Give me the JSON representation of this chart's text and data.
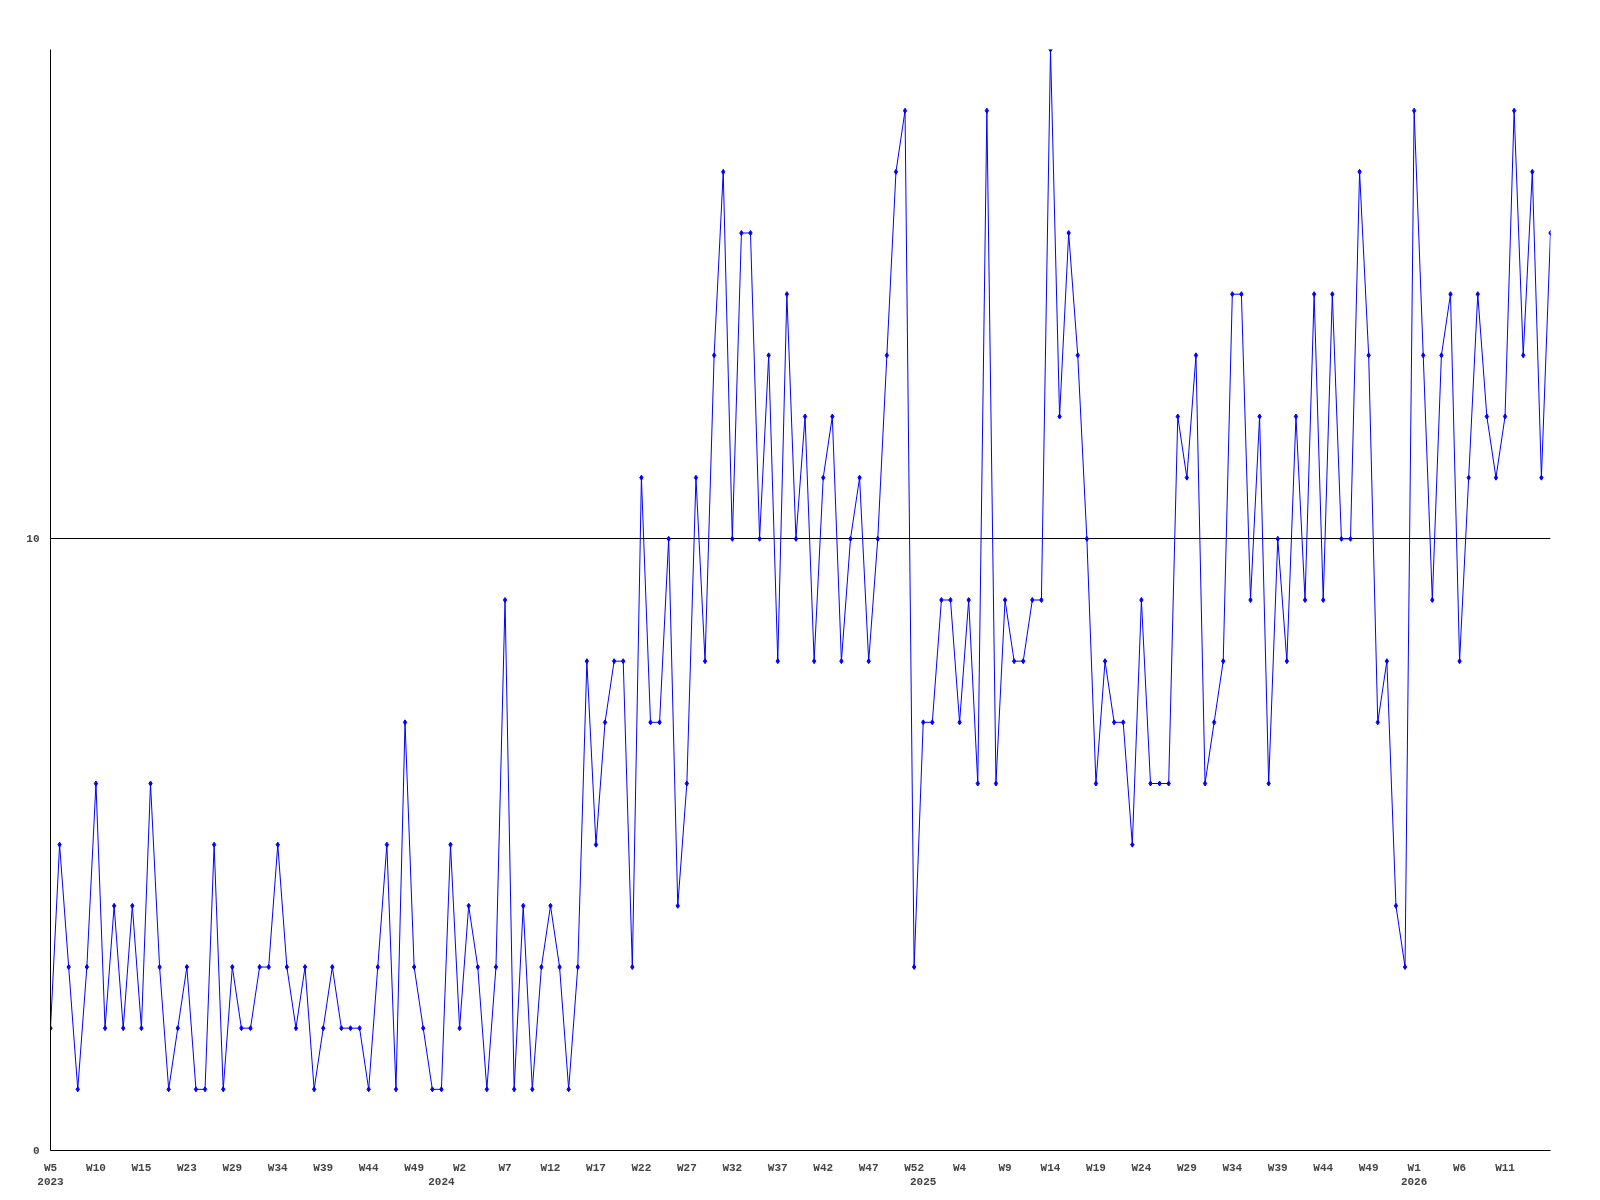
{
  "chart_data": {
    "type": "line",
    "categories": [
      "W5\n2023",
      null,
      null,
      null,
      null,
      "W10",
      null,
      null,
      null,
      null,
      "W15",
      null,
      null,
      null,
      null,
      "W23",
      null,
      null,
      null,
      null,
      "W29",
      null,
      null,
      null,
      null,
      "W34",
      null,
      null,
      null,
      null,
      "W39",
      null,
      null,
      null,
      null,
      "W44",
      null,
      null,
      null,
      null,
      "W49",
      null,
      null,
      "\n2024",
      null,
      "W2",
      null,
      null,
      null,
      null,
      "W7",
      null,
      null,
      null,
      null,
      "W12",
      null,
      null,
      null,
      null,
      "W17",
      null,
      null,
      null,
      null,
      "W22",
      null,
      null,
      null,
      null,
      "W27",
      null,
      null,
      null,
      null,
      "W32",
      null,
      null,
      null,
      null,
      "W37",
      null,
      null,
      null,
      null,
      "W42",
      null,
      null,
      null,
      null,
      "W47",
      null,
      null,
      null,
      null,
      "W52",
      "\n2025",
      null,
      null,
      null,
      "W4",
      null,
      null,
      null,
      null,
      "W9",
      null,
      null,
      null,
      null,
      "W14",
      null,
      null,
      null,
      null,
      "W19",
      null,
      null,
      null,
      null,
      "W24",
      null,
      null,
      null,
      null,
      "W29",
      null,
      null,
      null,
      null,
      "W34",
      null,
      null,
      null,
      null,
      "W39",
      null,
      null,
      null,
      null,
      "W44",
      null,
      null,
      null,
      null,
      "W49",
      null,
      null,
      null,
      null,
      "W1\n2026",
      null,
      null,
      null,
      null,
      "W6",
      null,
      null,
      null,
      null,
      "W11",
      null,
      null,
      null,
      null,
      null
    ],
    "series": [
      {
        "color": "#0000ff",
        "values": [
          2,
          5,
          3,
          1,
          3,
          6,
          2,
          4,
          2,
          4,
          2,
          6,
          3,
          1,
          2,
          3,
          1,
          1,
          5,
          1,
          3,
          2,
          2,
          3,
          3,
          5,
          3,
          2,
          3,
          1,
          2,
          3,
          2,
          2,
          2,
          1,
          3,
          5,
          1,
          7,
          3,
          2,
          1,
          1,
          5,
          2,
          4,
          3,
          1,
          3,
          9,
          1,
          4,
          1,
          3,
          4,
          3,
          1,
          3,
          8,
          5,
          7,
          8,
          8,
          3,
          11,
          7,
          7,
          10,
          4,
          6,
          11,
          8,
          13,
          16,
          10,
          15,
          15,
          10,
          13,
          8,
          14,
          10,
          12,
          8,
          11,
          12,
          8,
          10,
          11,
          8,
          10,
          13,
          16,
          17,
          3,
          7,
          7,
          9,
          9,
          7,
          9,
          6,
          17,
          6,
          9,
          8,
          8,
          9,
          9,
          18,
          12,
          15,
          13,
          10,
          6,
          8,
          7,
          7,
          5,
          9,
          6,
          6,
          6,
          12,
          11,
          13,
          6,
          7,
          8,
          14,
          14,
          9,
          12,
          6,
          10,
          8,
          12,
          9,
          14,
          9,
          14,
          10,
          10,
          16,
          13,
          7,
          8,
          4,
          3,
          17,
          13,
          9,
          13,
          14,
          8,
          11,
          14,
          12,
          11,
          12,
          17,
          13,
          16,
          11,
          15
        ]
      }
    ],
    "ylim": [
      0,
      18
    ],
    "yticks": [
      0,
      10
    ],
    "grid": "y",
    "marker": "diamond",
    "line_style": "solid"
  }
}
